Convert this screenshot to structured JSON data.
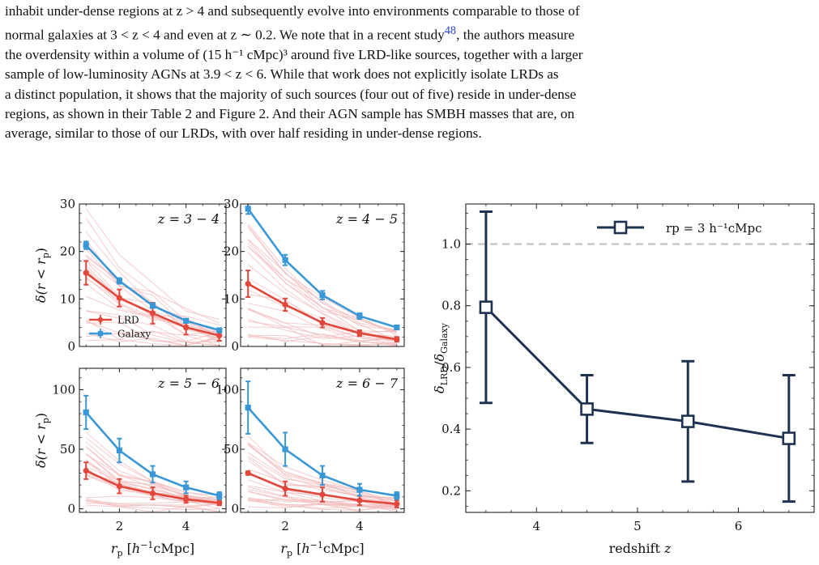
{
  "paragraph": {
    "lines": [
      "inhabit under-dense regions at z > 4 and subsequently evolve into environments comparable to those of",
      "normal galaxies at 3 < z < 4 and even at z ∼ 0.2. We note that in a recent study",
      "the overdensity within a volume of (15 h⁻¹ cMpc)³ around five LRD-like sources, together with a larger",
      "sample of low-luminosity AGNs at 3.9 < z < 6.  While that work does not explicitly isolate LRDs as",
      "a distinct population, it shows that the majority of such sources (four out of five) reside in under-dense",
      "regions, as shown in their Table 2 and Figure 2.  And their AGN sample has SMBH masses that are, on",
      "average, similar to those of our LRDs, with over half residing in under-dense regions."
    ],
    "citation": "48",
    "line2_tail": ", the authors measure"
  },
  "colors": {
    "lrd": "#e2473b",
    "galaxy": "#3a97d6",
    "faint": "#f2b9b9",
    "ratio": "#1e3250",
    "reference": "#bdbdbd"
  },
  "chart_data": [
    {
      "type": "line",
      "panel_label": "z = 3 − 4",
      "ylabel": "δ(r < rp)",
      "xlabel": "",
      "ylim": [
        0,
        30
      ],
      "yticks": [
        0,
        10,
        20,
        30
      ],
      "xlim": [
        0.8,
        5.2
      ],
      "legend": [
        "LRD",
        "Galaxy"
      ],
      "legend_position": "lower-left",
      "x": [
        1,
        2,
        3,
        4,
        5
      ],
      "series": [
        {
          "name": "LRD",
          "values": [
            15.5,
            10.2,
            7.0,
            4.0,
            2.3
          ],
          "errors": [
            2.5,
            1.8,
            2.2,
            1.5,
            1.1
          ]
        },
        {
          "name": "Galaxy",
          "values": [
            21.3,
            13.8,
            8.6,
            5.4,
            3.4
          ],
          "errors": [
            0.8,
            0.6,
            0.5,
            0.4,
            0.3
          ]
        }
      ]
    },
    {
      "type": "line",
      "panel_label": "z = 4 − 5",
      "ylabel": "",
      "xlabel": "",
      "ylim": [
        0,
        30
      ],
      "yticks": [
        0,
        10,
        20,
        30
      ],
      "xlim": [
        0.8,
        5.2
      ],
      "x": [
        1,
        2,
        3,
        4,
        5
      ],
      "series": [
        {
          "name": "LRD",
          "values": [
            13.2,
            8.8,
            5.0,
            2.8,
            1.5
          ],
          "errors": [
            2.8,
            1.3,
            1.0,
            0.6,
            0.5
          ]
        },
        {
          "name": "Galaxy",
          "values": [
            29.0,
            18.2,
            10.8,
            6.4,
            4.0
          ],
          "errors": [
            1.1,
            1.1,
            0.9,
            0.6,
            0.3
          ]
        }
      ]
    },
    {
      "type": "line",
      "panel_label": "z = 5 − 6",
      "ylabel": "δ(r < rp)",
      "xlabel": "rp [h⁻¹cMpc]",
      "ylim": [
        -3,
        118
      ],
      "yticks": [
        0,
        50,
        100
      ],
      "xticks": [
        2,
        4
      ],
      "xlim": [
        0.8,
        5.2
      ],
      "x": [
        1,
        2,
        3,
        4,
        5
      ],
      "series": [
        {
          "name": "LRD",
          "values": [
            32,
            19,
            13,
            8,
            5
          ],
          "errors": [
            7,
            6,
            5,
            3,
            2
          ]
        },
        {
          "name": "Galaxy",
          "values": [
            81,
            49,
            29,
            18,
            11
          ],
          "errors": [
            14,
            10,
            7,
            5,
            3
          ]
        }
      ]
    },
    {
      "type": "line",
      "panel_label": "z = 6 − 7",
      "ylabel": "",
      "xlabel": "rp [h⁻¹cMpc]",
      "ylim": [
        -3,
        118
      ],
      "yticks": [
        0,
        50,
        100
      ],
      "xticks": [
        2,
        4
      ],
      "xlim": [
        0.8,
        5.2
      ],
      "x": [
        1,
        2,
        3,
        4,
        5
      ],
      "series": [
        {
          "name": "LRD",
          "values": [
            30,
            17,
            12,
            7,
            4
          ],
          "errors": [
            1.5,
            6,
            6,
            4,
            3
          ]
        },
        {
          "name": "Galaxy",
          "values": [
            85,
            50,
            28,
            16,
            11
          ],
          "errors": [
            22,
            14,
            8,
            5,
            3
          ]
        }
      ]
    },
    {
      "type": "line",
      "xlabel": "redshift z",
      "ylabel": "δLRD / δGalaxy",
      "xlim": [
        3.3,
        6.75
      ],
      "ylim": [
        0.13,
        1.13
      ],
      "xticks": [
        4,
        5,
        6
      ],
      "yticks": [
        0.2,
        0.4,
        0.6,
        0.8,
        1.0
      ],
      "reference_line": 1.0,
      "legend": [
        "rp = 3 h⁻¹cMpc"
      ],
      "legend_position": "top-right",
      "series": [
        {
          "name": "rp = 3 h⁻¹cMpc",
          "x": [
            3.5,
            4.5,
            5.5,
            6.5
          ],
          "values": [
            0.795,
            0.465,
            0.425,
            0.37
          ],
          "err_low": [
            0.31,
            0.11,
            0.195,
            0.205
          ],
          "err_high": [
            0.31,
            0.11,
            0.195,
            0.205
          ]
        }
      ]
    }
  ]
}
